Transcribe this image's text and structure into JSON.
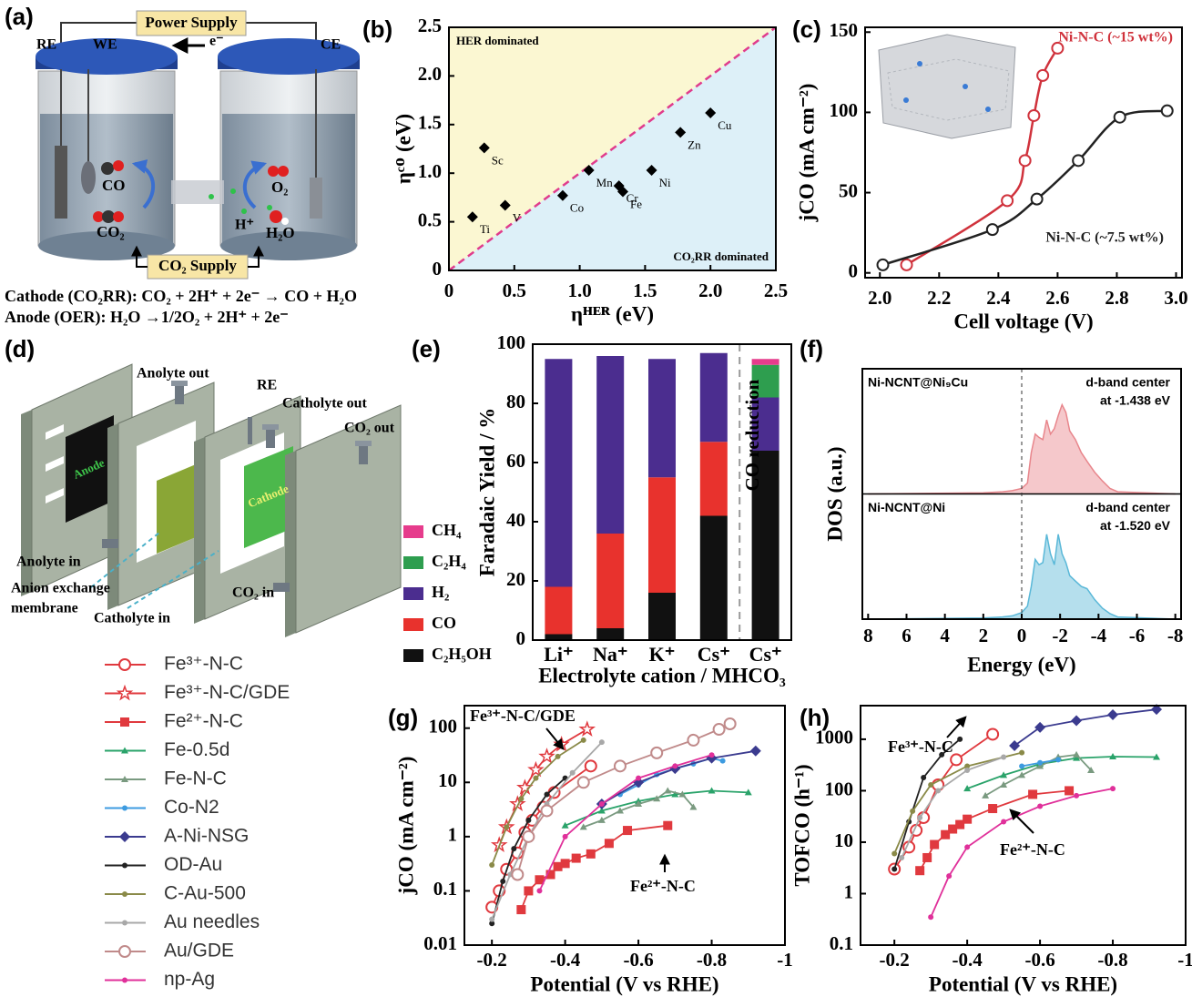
{
  "panel_labels": [
    "(a)",
    "(b)",
    "(c)",
    "(d)",
    "(e)",
    "(f)",
    "(g)",
    "(h)"
  ],
  "diagram_a": {
    "power_supply": "Power Supply",
    "re": "RE",
    "we": "WE",
    "ce": "CE",
    "electron": "e⁻",
    "co": "CO",
    "co2": "CO₂",
    "o2": "O₂",
    "h_plus": "H⁺",
    "h2o": "H₂O",
    "co2_supply": "CO₂ Supply",
    "cathode_eq": "Cathode (CO₂RR): CO₂ + 2H⁺ + 2e⁻ → CO + H₂O",
    "anode_eq": "Anode (OER): H₂O →1/2O₂ + 2H⁺ + 2e⁻"
  },
  "diagram_d": {
    "anolyte_out": "Anolyte out",
    "re": "RE",
    "catholyte_out": "Catholyte out",
    "co2_out": "CO₂ out",
    "anode": "Anode",
    "cathode": "Cathode",
    "anolyte_in": "Anolyte in",
    "membrane_1": "Anion exchange",
    "membrane_2": "membrane",
    "catholyte_in": "Catholyte in",
    "co2_in": "CO₂ in"
  },
  "chart_data": [
    {
      "type": "scatter",
      "xlabel": "ηᴴᴱᴿ (eV)",
      "ylabel": "ηᶜᴼ (eV)",
      "region_labels": [
        "HER dominated",
        "CO₂RR dominated"
      ],
      "labels": [
        "Ti",
        "Sc",
        "V",
        "Co",
        "Mn",
        "Cr",
        "Fe",
        "Ni",
        "Zn",
        "Cu"
      ],
      "x": [
        0.18,
        0.27,
        0.43,
        0.87,
        1.07,
        1.3,
        1.33,
        1.55,
        1.77,
        2.0
      ],
      "values": [
        0.55,
        1.26,
        0.67,
        0.77,
        1.03,
        0.87,
        0.81,
        1.03,
        1.42,
        1.62
      ],
      "color": "#000000",
      "marker": "diamond",
      "xlim": [
        0,
        2.5
      ],
      "ylim": [
        0,
        2.5
      ],
      "xticks": [
        0,
        0.5,
        {
          "value": 1,
          "label": "1.0"
        },
        1.5,
        {
          "value": 2,
          "label": "2.0"
        },
        2.5
      ],
      "yticks": [
        0,
        0.5,
        {
          "value": 1,
          "label": "1.0"
        },
        1.5,
        {
          "value": 2,
          "label": "2.0"
        },
        2.5
      ]
    },
    {
      "type": "line",
      "xlabel": "Cell voltage (V)",
      "ylabel": "jCO (mA cm⁻²)",
      "smooth": true,
      "series": [
        {
          "name": "Ni-N-C (~15 wt%)",
          "color": "#d0323c",
          "marker": "circle-open",
          "x": [
            2.09,
            2.43,
            2.49,
            2.52,
            2.55,
            2.6
          ],
          "values": [
            5,
            45,
            70,
            98,
            123,
            140
          ]
        },
        {
          "name": "Ni-N-C (~7.5 wt%)",
          "color": "#222222",
          "marker": "circle-open",
          "x": [
            2.01,
            2.38,
            2.53,
            2.67,
            2.81,
            2.97
          ],
          "values": [
            5,
            27,
            46,
            70,
            97,
            101
          ]
        }
      ],
      "xlim": [
        1.95,
        3.02
      ],
      "ylim": [
        -3,
        153
      ],
      "xticks": [
        {
          "value": 2,
          "label": "2.0"
        },
        2.2,
        2.4,
        2.6,
        2.8,
        {
          "value": 3,
          "label": "3.0"
        }
      ],
      "yticks": [
        0,
        50,
        100,
        150
      ]
    },
    {
      "type": "bar",
      "stacked": true,
      "xlabel": "Electrolyte cation / MHCO₃",
      "ylabel": "Faradaic Yield / %",
      "annotation": "CO reduction",
      "categories": [
        "Li⁺",
        "Na⁺",
        "K⁺",
        "Cs⁺",
        "Cs⁺"
      ],
      "series": [
        {
          "name": "C₂H₅OH",
          "color": "#111111",
          "values": [
            2,
            4,
            16,
            42,
            64
          ]
        },
        {
          "name": "CO",
          "color": "#e8322d",
          "values": [
            16,
            32,
            39,
            25,
            0
          ]
        },
        {
          "name": "H₂",
          "color": "#4b2d8f",
          "values": [
            77,
            60,
            40,
            30,
            18
          ]
        },
        {
          "name": "C₂H₄",
          "color": "#2e9e4f",
          "values": [
            0,
            0,
            0,
            0,
            11
          ]
        },
        {
          "name": "CH₄",
          "color": "#e63c8c",
          "values": [
            0,
            0,
            0,
            0,
            2
          ]
        }
      ],
      "ylim": [
        0,
        100
      ],
      "yticks": [
        0,
        20,
        40,
        60,
        80,
        100
      ]
    },
    {
      "type": "area",
      "xlabel": "Energy (eV)",
      "ylabel": "DOS (a.u.)",
      "x": [
        8,
        2,
        1,
        0.5,
        0,
        -0.3,
        -0.5,
        -0.7,
        -0.9,
        -1.1,
        -1.3,
        -1.5,
        -1.7,
        -1.9,
        -2.1,
        -2.3,
        -2.5,
        -2.8,
        -3.1,
        -3.4,
        -3.8,
        -4.2,
        -4.6,
        -5,
        -8
      ],
      "series": [
        {
          "name": "Ni-NCNT@Ni₉Cu",
          "annotation": [
            "d-band center",
            "at -1.438 eV"
          ],
          "color": "#e8868c",
          "values": [
            0,
            1,
            2,
            3,
            5,
            10,
            38,
            55,
            52,
            50,
            68,
            55,
            60,
            72,
            82,
            75,
            58,
            50,
            38,
            30,
            20,
            12,
            5,
            2,
            0
          ]
        },
        {
          "name": "Ni-NCNT@Ni",
          "annotation": [
            "d-band center",
            "at -1.520 eV"
          ],
          "color": "#5ab8d8",
          "values": [
            0,
            1,
            2,
            3,
            6,
            12,
            30,
            55,
            50,
            52,
            78,
            60,
            50,
            78,
            60,
            52,
            40,
            35,
            30,
            28,
            18,
            10,
            5,
            2,
            0
          ]
        }
      ],
      "xlim": [
        8.3,
        -8.3
      ],
      "ylim": [
        0,
        100
      ],
      "xticks": [
        8,
        6,
        4,
        2,
        0,
        -2,
        -4,
        -6,
        -8
      ]
    },
    {
      "type": "line",
      "ylog": true,
      "xlabel": "Potential (V vs RHE)",
      "ylabel": "jCO (mA cm⁻²)",
      "annotations": [
        "Fe³⁺-N-C/GDE",
        "Fe²⁺-N-C"
      ],
      "series": [
        {
          "name": "Fe³⁺-N-C",
          "color": "#e0393e",
          "marker": "circle-open",
          "x": [
            -0.2,
            -0.22,
            -0.24,
            -0.27,
            -0.29,
            -0.31,
            -0.34,
            -0.37,
            -0.47
          ],
          "values": [
            0.05,
            0.1,
            0.25,
            0.5,
            1.2,
            2,
            3.5,
            6.5,
            20
          ]
        },
        {
          "name": "Fe³⁺-N-C/GDE",
          "color": "#e0393e",
          "marker": "star",
          "x": [
            -0.22,
            -0.24,
            -0.27,
            -0.29,
            -0.32,
            -0.35,
            -0.39,
            -0.46
          ],
          "values": [
            0.7,
            1.5,
            4,
            8,
            17,
            30,
            50,
            95
          ]
        },
        {
          "name": "Fe²⁺-N-C",
          "color": "#e0393e",
          "marker": "square",
          "x": [
            -0.28,
            -0.3,
            -0.33,
            -0.36,
            -0.38,
            -0.4,
            -0.43,
            -0.47,
            -0.52,
            -0.57,
            -0.68
          ],
          "values": [
            0.045,
            0.1,
            0.16,
            0.2,
            0.28,
            0.32,
            0.4,
            0.48,
            0.75,
            1.3,
            1.6
          ]
        },
        {
          "name": "Fe-0.5d",
          "color": "#2aa36a",
          "marker": "triangle",
          "x": [
            -0.4,
            -0.5,
            -0.6,
            -0.7,
            -0.8,
            -0.9
          ],
          "values": [
            1.6,
            3,
            4.5,
            6,
            7,
            6.5
          ]
        },
        {
          "name": "Fe-N-C",
          "color": "#7a9a80",
          "marker": "triangle",
          "x": [
            -0.45,
            -0.5,
            -0.55,
            -0.6,
            -0.65,
            -0.68,
            -0.72,
            -0.75
          ],
          "values": [
            1.5,
            2,
            3,
            4,
            5,
            7,
            6,
            3.5
          ]
        },
        {
          "name": "Co-N2",
          "color": "#3d9be0",
          "marker": "circle",
          "x": [
            -0.55,
            -0.6,
            -0.65,
            -0.7,
            -0.75,
            -0.8,
            -0.83
          ],
          "values": [
            6,
            9,
            14,
            18,
            22,
            28,
            25
          ]
        },
        {
          "name": "A-Ni-NSG",
          "color": "#3b3b8f",
          "marker": "diamond",
          "x": [
            -0.5,
            -0.6,
            -0.7,
            -0.8,
            -0.92
          ],
          "values": [
            4,
            10,
            18,
            28,
            38
          ]
        },
        {
          "name": "OD-Au",
          "color": "#222222",
          "marker": "circle",
          "x": [
            -0.2,
            -0.23,
            -0.26,
            -0.3,
            -0.35,
            -0.4
          ],
          "values": [
            0.025,
            0.15,
            0.6,
            2,
            6,
            12
          ]
        },
        {
          "name": "C-Au-500",
          "color": "#8a8a48",
          "marker": "circle",
          "x": [
            -0.2,
            -0.24,
            -0.28,
            -0.32,
            -0.38,
            -0.45
          ],
          "values": [
            0.3,
            1.5,
            5,
            12,
            30,
            60
          ]
        },
        {
          "name": "Au needles",
          "color": "#a8a8a8",
          "marker": "circle",
          "x": [
            -0.2,
            -0.25,
            -0.3,
            -0.35,
            -0.42,
            -0.5
          ],
          "values": [
            0.03,
            0.2,
            1,
            4,
            15,
            55
          ]
        },
        {
          "name": "Au/GDE",
          "color": "#c08a8a",
          "marker": "circle-open",
          "x": [
            -0.27,
            -0.3,
            -0.35,
            -0.45,
            -0.55,
            -0.65,
            -0.75,
            -0.82,
            -0.85
          ],
          "values": [
            0.2,
            1,
            3,
            10,
            20,
            35,
            60,
            95,
            120
          ]
        },
        {
          "name": "np-Ag",
          "color": "#e0309a",
          "marker": "circle",
          "x": [
            -0.33,
            -0.4,
            -0.5,
            -0.6,
            -0.7,
            -0.8
          ],
          "values": [
            0.1,
            1,
            4,
            12,
            20,
            32
          ]
        }
      ],
      "xlim": [
        -0.125,
        -1
      ],
      "ylim": [
        0.01,
        260
      ],
      "xticks": [
        -0.2,
        -0.4,
        -0.6,
        -0.8,
        -1
      ],
      "yticks": [
        0.01,
        0.1,
        1,
        10,
        100
      ]
    },
    {
      "type": "line",
      "ylog": true,
      "xlabel": "Potential (V vs RHE)",
      "ylabel": "TOFCO (h⁻¹)",
      "annotations": [
        "Fe³⁺-N-C",
        "Fe²⁺-N-C"
      ],
      "series": [
        {
          "color": "#e0393e",
          "marker": "circle-open",
          "x": [
            -0.2,
            -0.24,
            -0.26,
            -0.28,
            -0.32,
            -0.37,
            -0.47
          ],
          "values": [
            3,
            8,
            17,
            30,
            130,
            400,
            1250
          ]
        },
        {
          "color": "#e0393e",
          "marker": "square",
          "x": [
            -0.27,
            -0.29,
            -0.31,
            -0.34,
            -0.36,
            -0.38,
            -0.4,
            -0.47,
            -0.58,
            -0.68
          ],
          "values": [
            2.8,
            5,
            9,
            14,
            18,
            22,
            28,
            45,
            85,
            100
          ]
        },
        {
          "color": "#2aa36a",
          "marker": "triangle",
          "x": [
            -0.4,
            -0.5,
            -0.6,
            -0.7,
            -0.8,
            -0.92
          ],
          "values": [
            110,
            200,
            330,
            430,
            460,
            450
          ]
        },
        {
          "color": "#7a9a80",
          "marker": "triangle",
          "x": [
            -0.45,
            -0.5,
            -0.55,
            -0.6,
            -0.65,
            -0.7,
            -0.74
          ],
          "values": [
            80,
            130,
            200,
            300,
            450,
            500,
            250
          ]
        },
        {
          "color": "#3d9be0",
          "marker": "circle",
          "x": [
            -0.55,
            -0.6,
            -0.65
          ],
          "values": [
            300,
            350,
            400
          ]
        },
        {
          "color": "#3b3b8f",
          "marker": "diamond",
          "x": [
            -0.53,
            -0.6,
            -0.7,
            -0.8,
            -0.92
          ],
          "values": [
            750,
            1700,
            2300,
            3000,
            3800
          ]
        },
        {
          "color": "#222222",
          "marker": "circle",
          "x": [
            -0.2,
            -0.24,
            -0.28,
            -0.33,
            -0.38
          ],
          "values": [
            3,
            25,
            180,
            500,
            1000
          ]
        },
        {
          "color": "#8a8a48",
          "marker": "circle",
          "x": [
            -0.2,
            -0.25,
            -0.3,
            -0.4,
            -0.55
          ],
          "values": [
            6,
            40,
            130,
            300,
            550
          ]
        },
        {
          "color": "#a8a8a8",
          "marker": "circle",
          "x": [
            -0.22,
            -0.27,
            -0.32,
            -0.4,
            -0.5
          ],
          "values": [
            5,
            30,
            100,
            250,
            450
          ]
        },
        {
          "color": "#e0309a",
          "marker": "circle",
          "x": [
            -0.3,
            -0.35,
            -0.4,
            -0.5,
            -0.6,
            -0.7,
            -0.8
          ],
          "values": [
            0.35,
            2.2,
            8,
            25,
            50,
            80,
            110
          ]
        }
      ],
      "xlim": [
        -0.107,
        -1
      ],
      "ylim": [
        0.1,
        4500
      ],
      "xticks": [
        -0.2,
        -0.4,
        -0.6,
        -0.8,
        -1
      ],
      "yticks": [
        0.1,
        1,
        10,
        100,
        1000
      ]
    }
  ]
}
